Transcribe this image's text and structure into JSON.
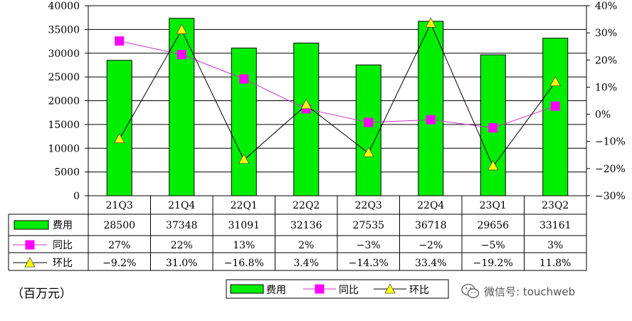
{
  "chart_data": {
    "type": "bar",
    "categories": [
      "21Q3",
      "21Q4",
      "22Q1",
      "22Q2",
      "22Q3",
      "22Q4",
      "23Q1",
      "23Q2"
    ],
    "series": [
      {
        "name": "费用",
        "type": "bar",
        "axis": "left",
        "color": "#00ee00",
        "values": [
          28500,
          37348,
          31091,
          32136,
          27535,
          36718,
          29656,
          33161
        ],
        "labels": [
          "28500",
          "37348",
          "31091",
          "32136",
          "27535",
          "36718",
          "29656",
          "33161"
        ]
      },
      {
        "name": "同比",
        "type": "line",
        "axis": "right",
        "color": "#cc33cc",
        "marker": "square",
        "marker_color": "#ff00ff",
        "values": [
          27,
          22,
          13,
          2,
          -3,
          -2,
          -5,
          3
        ],
        "labels": [
          "27%",
          "22%",
          "13%",
          "2%",
          "−3%",
          "−2%",
          "−5%",
          "3%"
        ]
      },
      {
        "name": "环比",
        "type": "line",
        "axis": "right",
        "color": "#000000",
        "marker": "triangle",
        "marker_color": "#ffff00",
        "values": [
          -9.2,
          31.0,
          -16.8,
          3.4,
          -14.3,
          33.4,
          -19.2,
          11.8
        ],
        "labels": [
          "−9.2%",
          "31.0%",
          "−16.8%",
          "3.4%",
          "−14.3%",
          "33.4%",
          "−19.2%",
          "11.8%"
        ]
      }
    ],
    "y_left": {
      "min": 0,
      "max": 40000,
      "step": 5000,
      "ticks": [
        "0",
        "5000",
        "10000",
        "15000",
        "20000",
        "25000",
        "30000",
        "35000",
        "40000"
      ]
    },
    "y_right": {
      "min": -30,
      "max": 40,
      "step": 10,
      "ticks": [
        "−30%",
        "−20%",
        "−10%",
        "0%",
        "10%",
        "20%",
        "30%",
        "40%"
      ]
    },
    "grid": true,
    "legend": {
      "placement": "bottom-center",
      "items": [
        "费用",
        "同比",
        "环比"
      ]
    },
    "unit_label": "（百万元）"
  },
  "watermark": "微信号: touchweb"
}
